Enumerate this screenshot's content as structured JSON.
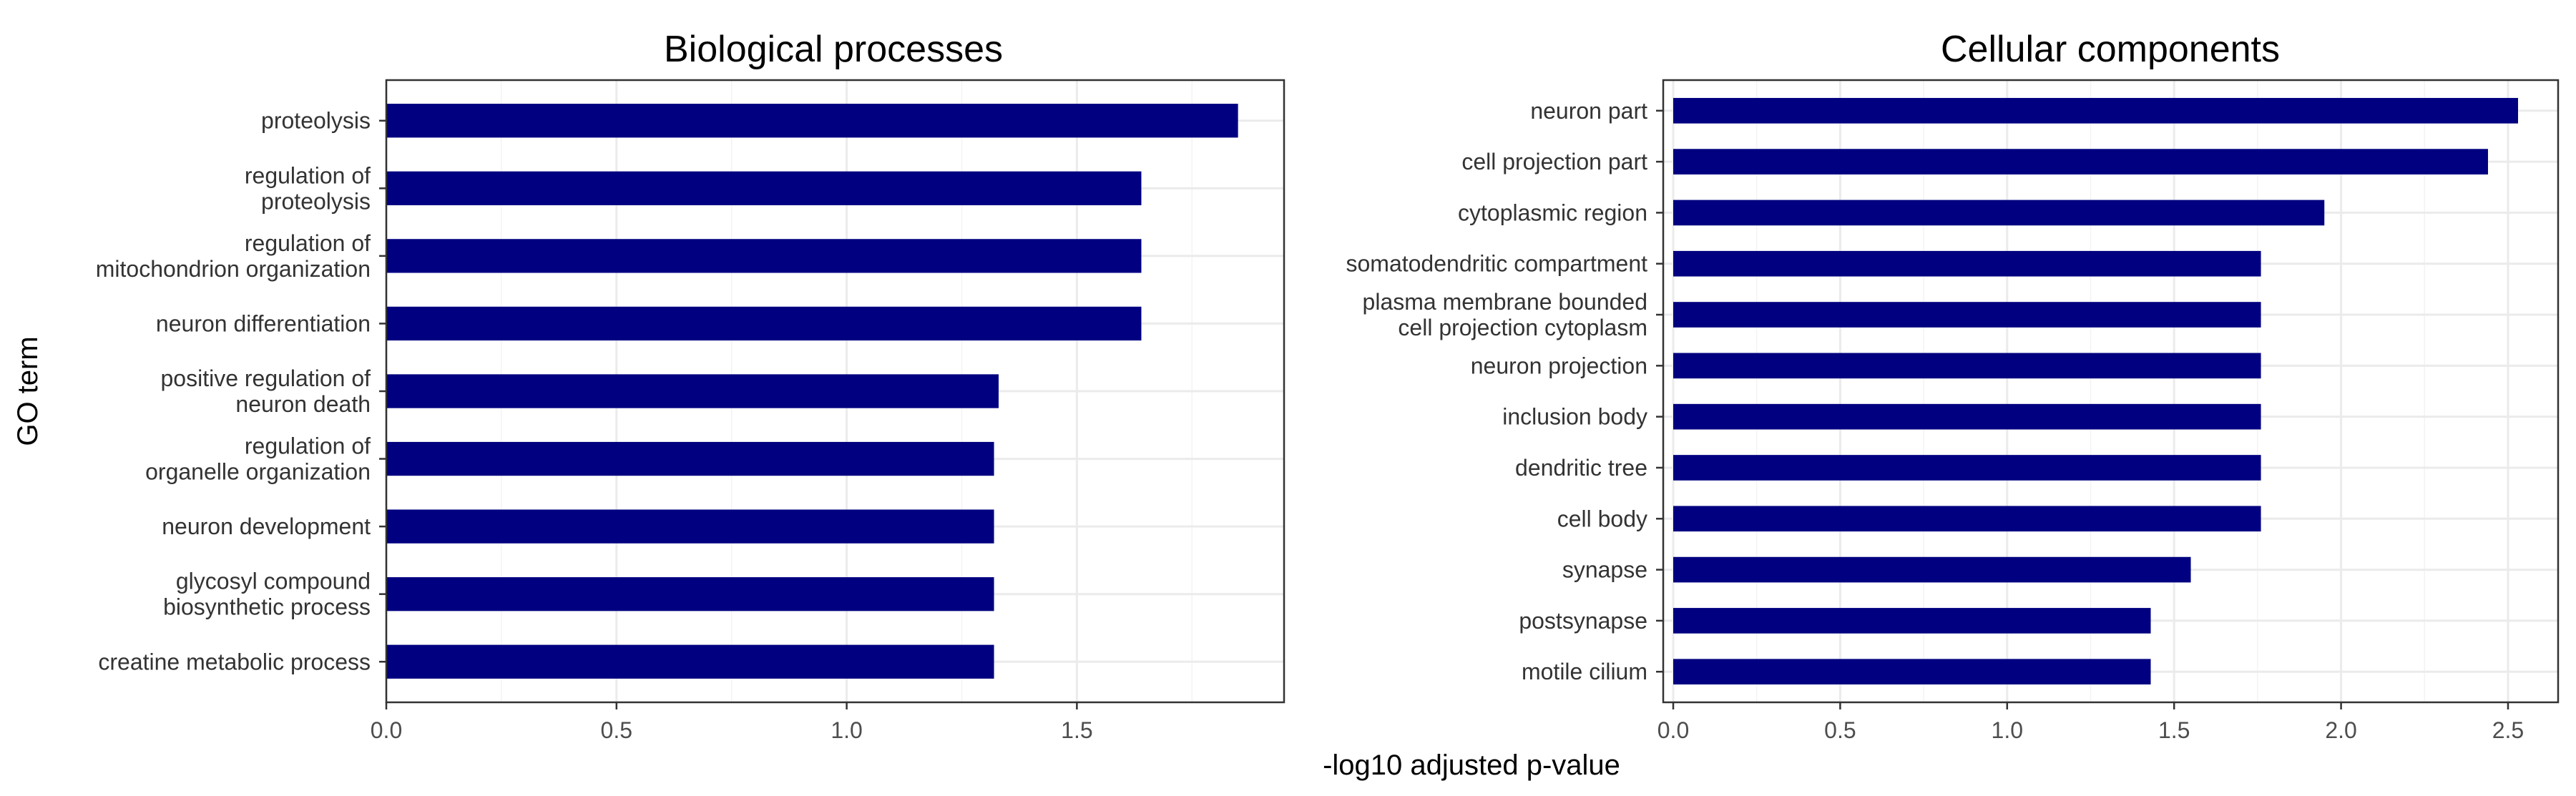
{
  "chart_data": [
    {
      "type": "bar",
      "orientation": "horizontal",
      "title": "Biological processes",
      "ylabel": "GO term",
      "xlim": [
        0,
        1.95
      ],
      "xticks": [
        0.0,
        0.5,
        1.0,
        1.5
      ],
      "xtick_labels": [
        "0.0",
        "0.5",
        "1.0",
        "1.5"
      ],
      "grid": true,
      "bar_color": "#000080",
      "categories": [
        "proteolysis",
        "regulation of\nproteolysis",
        "regulation of\nmitochondrion organization",
        "neuron differentiation",
        "positive regulation of\nneuron death",
        "regulation of\norganelle organization",
        "neuron development",
        "glycosyl compound\nbiosynthetic process",
        "creatine metabolic process"
      ],
      "values": [
        1.85,
        1.64,
        1.64,
        1.64,
        1.33,
        1.32,
        1.32,
        1.32,
        1.32
      ]
    },
    {
      "type": "bar",
      "orientation": "horizontal",
      "title": "Cellular components",
      "xlim": [
        -0.03,
        2.65
      ],
      "xticks": [
        0.0,
        0.5,
        1.0,
        1.5,
        2.0,
        2.5
      ],
      "xtick_labels": [
        "0.0",
        "0.5",
        "1.0",
        "1.5",
        "2.0",
        "2.5"
      ],
      "grid": true,
      "bar_color": "#000080",
      "categories": [
        "neuron part",
        "cell projection part",
        "cytoplasmic region",
        "somatodendritic compartment",
        "plasma membrane bounded\ncell projection cytoplasm",
        "neuron projection",
        "inclusion body",
        "dendritic tree",
        "cell body",
        "synapse",
        "postsynapse",
        "motile cilium"
      ],
      "values": [
        2.53,
        2.44,
        1.95,
        1.76,
        1.76,
        1.76,
        1.76,
        1.76,
        1.76,
        1.55,
        1.43,
        1.43
      ]
    }
  ],
  "shared": {
    "xlabel": "-log10 adjusted p-value"
  }
}
